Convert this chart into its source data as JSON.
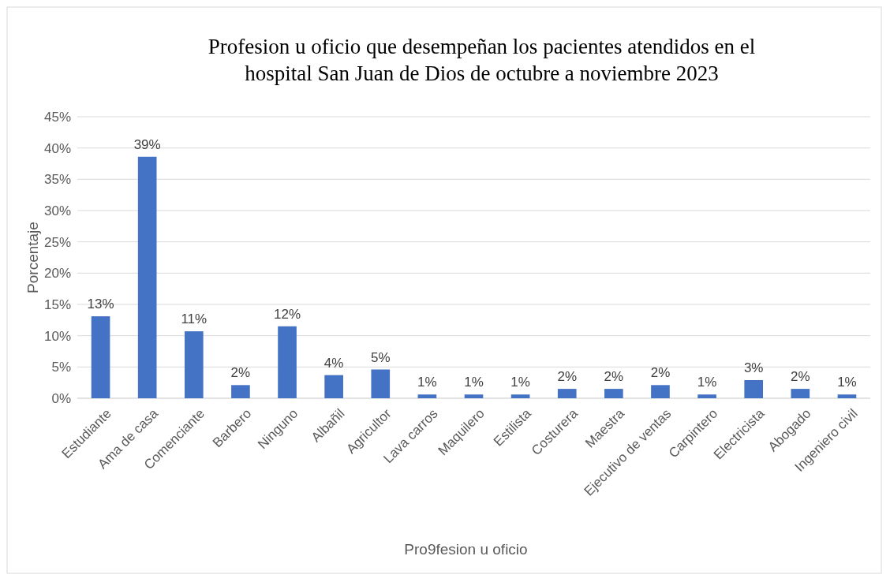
{
  "chart_data": {
    "type": "bar",
    "title": "Profesion u oficio que desempeñan los pacientes atendidos en el\nhospital San Juan de Dios de octubre a noviembre 2023",
    "xlabel": "Pro9fesion u oficio",
    "ylabel": "Porcentaje",
    "categories": [
      "Estudiante",
      "Ama de casa",
      "Comenciante",
      "Barbero",
      "Ninguno",
      "Albañil",
      "Agricultor",
      "Lava carros",
      "Maquilero",
      "Estilista",
      "Costurera",
      "Maestra",
      "Ejecutivo de ventas",
      "Carpintero",
      "Electricista",
      "Abogado",
      "Ingeniero civil"
    ],
    "values": [
      13.1,
      38.6,
      10.7,
      2.1,
      11.5,
      3.7,
      4.6,
      0.6,
      0.6,
      0.6,
      1.5,
      1.5,
      2.1,
      0.6,
      2.9,
      1.5,
      0.6
    ],
    "value_labels": [
      "13%",
      "39%",
      "11%",
      "2%",
      "12%",
      "4%",
      "5%",
      "1%",
      "1%",
      "1%",
      "2%",
      "2%",
      "2%",
      "1%",
      "3%",
      "2%",
      "1%"
    ],
    "color": "#4472c4",
    "ylim": [
      0,
      45
    ],
    "yticks": [
      {
        "value": 0,
        "label": "0%"
      },
      {
        "value": 5,
        "label": "5%"
      },
      {
        "value": 10,
        "label": "10%"
      },
      {
        "value": 15,
        "label": "15%"
      },
      {
        "value": 20,
        "label": "20%"
      },
      {
        "value": 25,
        "label": "25%"
      },
      {
        "value": 30,
        "label": "30%"
      },
      {
        "value": 35,
        "label": "35%"
      },
      {
        "value": 40,
        "label": "40%"
      },
      {
        "value": 45,
        "label": "45%"
      }
    ],
    "grid": "y"
  }
}
